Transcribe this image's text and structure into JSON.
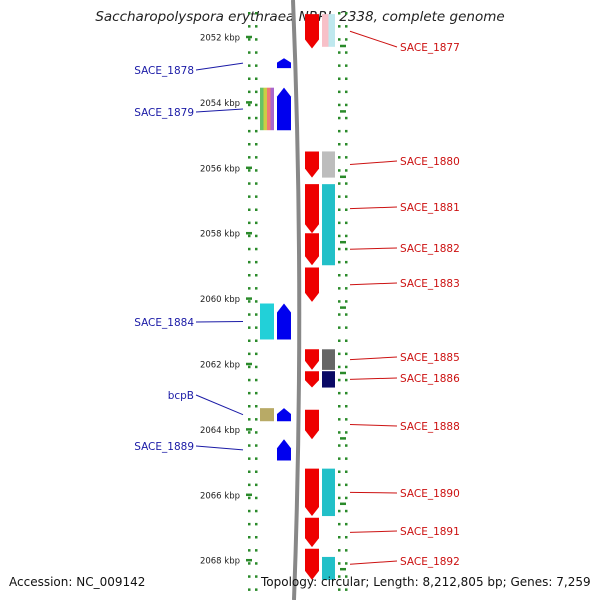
{
  "title": "Saccharopolyspora erythraea NRRL 2338, complete genome",
  "footer": {
    "accession": "Accession: NC_009142",
    "stats": "Topology: circular; Length: 8,212,805 bp; Genes: 7,259"
  },
  "ruler": {
    "unit": "kbp",
    "labels": [
      {
        "kbp": 2052,
        "text": "2052 kbp"
      },
      {
        "kbp": 2054,
        "text": "2054 kbp"
      },
      {
        "kbp": 2056,
        "text": "2056 kbp"
      },
      {
        "kbp": 2058,
        "text": "2058 kbp"
      },
      {
        "kbp": 2060,
        "text": "2060 kbp"
      },
      {
        "kbp": 2062,
        "text": "2062 kbp"
      },
      {
        "kbp": 2064,
        "text": "2064 kbp"
      },
      {
        "kbp": 2066,
        "text": "2066 kbp"
      },
      {
        "kbp": 2068,
        "text": "2068 kbp"
      }
    ]
  },
  "colors": {
    "reverse_strand": "#0000ee",
    "forward_strand": "#ee0000",
    "label_left": "#1a1aa6",
    "label_right": "#cc1111",
    "backbone": "#888888",
    "ticks": "#2a8a2a"
  },
  "genes_reverse": [
    {
      "label": "SACE_1878",
      "start_kbp": 2052.65,
      "end_kbp": 2052.95
    },
    {
      "label": "SACE_1879",
      "start_kbp": 2053.55,
      "end_kbp": 2054.85
    },
    {
      "label": "SACE_1884",
      "start_kbp": 2060.15,
      "end_kbp": 2061.25
    },
    {
      "label": "bcpB",
      "start_kbp": 2063.35,
      "end_kbp": 2063.75
    },
    {
      "label": "SACE_1889",
      "start_kbp": 2064.3,
      "end_kbp": 2064.95
    }
  ],
  "genes_forward": [
    {
      "label": "SACE_1877",
      "start_kbp": 2051.3,
      "end_kbp": 2052.35
    },
    {
      "label": "SACE_1880",
      "start_kbp": 2055.5,
      "end_kbp": 2056.3
    },
    {
      "label": "SACE_1881",
      "start_kbp": 2056.5,
      "end_kbp": 2058.0
    },
    {
      "label": "SACE_1882",
      "start_kbp": 2058.0,
      "end_kbp": 2058.98
    },
    {
      "label": "SACE_1883",
      "start_kbp": 2059.05,
      "end_kbp": 2060.1
    },
    {
      "label": "SACE_1885",
      "start_kbp": 2061.55,
      "end_kbp": 2062.18
    },
    {
      "label": "SACE_1886",
      "start_kbp": 2062.22,
      "end_kbp": 2062.72
    },
    {
      "label": "SACE_1888",
      "start_kbp": 2063.4,
      "end_kbp": 2064.3
    },
    {
      "label": "SACE_1890",
      "start_kbp": 2065.2,
      "end_kbp": 2066.65
    },
    {
      "label": "SACE_1891",
      "start_kbp": 2066.7,
      "end_kbp": 2067.6
    },
    {
      "label": "SACE_1892",
      "start_kbp": 2067.65,
      "end_kbp": 2068.6
    }
  ],
  "cog_blocks": [
    {
      "side": "forward",
      "start_kbp": 2051.3,
      "end_kbp": 2052.3,
      "colors": [
        "#f7c0c8",
        "#bfe8ee"
      ]
    },
    {
      "side": "reverse",
      "start_kbp": 2053.55,
      "end_kbp": 2054.85,
      "colors": [
        "#66c266",
        "#cccc44",
        "#ee7777",
        "#aa66cc"
      ]
    },
    {
      "side": "forward",
      "start_kbp": 2055.5,
      "end_kbp": 2056.3,
      "colors": [
        "#bdbdbd"
      ]
    },
    {
      "side": "forward",
      "start_kbp": 2056.5,
      "end_kbp": 2058.98,
      "colors": [
        "#22c0c8"
      ]
    },
    {
      "side": "reverse",
      "start_kbp": 2060.15,
      "end_kbp": 2061.25,
      "colors": [
        "#22d0d8"
      ]
    },
    {
      "side": "forward",
      "start_kbp": 2061.55,
      "end_kbp": 2062.18,
      "colors": [
        "#666666"
      ]
    },
    {
      "side": "forward",
      "start_kbp": 2062.22,
      "end_kbp": 2062.72,
      "colors": [
        "#0a0a66"
      ]
    },
    {
      "side": "reverse",
      "start_kbp": 2063.35,
      "end_kbp": 2063.75,
      "colors": [
        "#b8aa66"
      ]
    },
    {
      "side": "forward",
      "start_kbp": 2065.2,
      "end_kbp": 2066.65,
      "colors": [
        "#22c0c8"
      ]
    },
    {
      "side": "forward",
      "start_kbp": 2067.9,
      "end_kbp": 2068.6,
      "colors": [
        "#22c0c8"
      ]
    }
  ]
}
